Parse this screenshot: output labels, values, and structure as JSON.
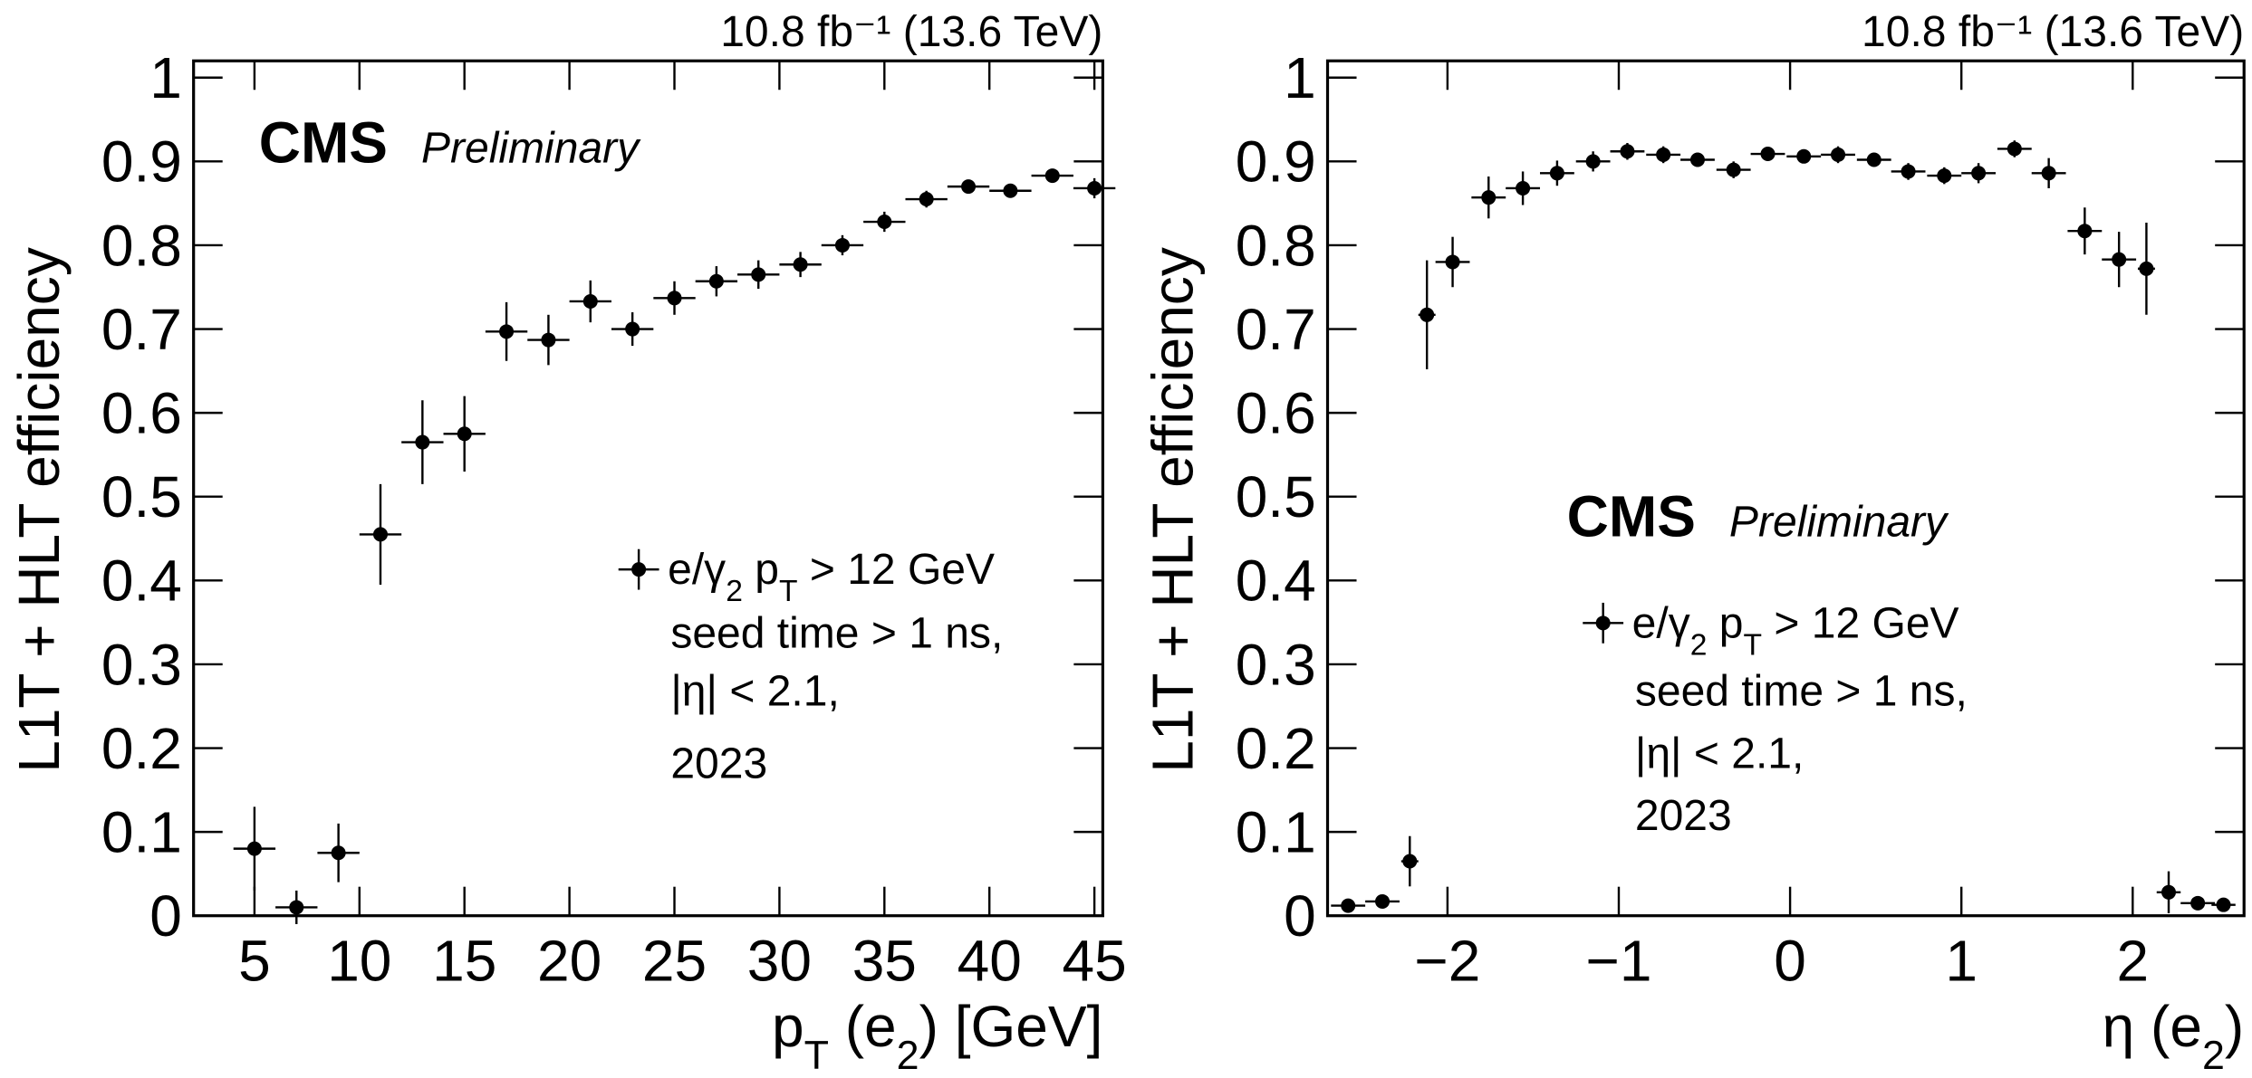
{
  "chart_data": [
    {
      "type": "scatter",
      "lumi": "10.8 fb⁻¹ (13.6 TeV)",
      "experiment": "CMS",
      "status": "Preliminary",
      "ylabel": "L1T + HLT efficiency",
      "xlabel": [
        {
          "text": "p"
        },
        {
          "text": "T",
          "sub": true
        },
        {
          "text": " (e"
        },
        {
          "text": "2",
          "sub": true
        },
        {
          "text": ") [GeV]"
        }
      ],
      "legend": [
        {
          "text": "e/γ"
        },
        {
          "text": "2",
          "sub": true
        },
        {
          "text": " p"
        },
        {
          "text": "T",
          "sub": true
        },
        {
          "text": " > 12 GeV"
        }
      ],
      "legend_notes": [
        "seed time > 1 ns,",
        "|η| < 2.1,",
        "2023"
      ],
      "color": "#000000",
      "x": [
        5,
        7,
        9,
        11,
        13,
        15,
        17,
        19,
        21,
        23,
        25,
        27,
        29,
        31,
        33,
        35,
        37,
        39,
        41,
        43,
        45
      ],
      "xerr": [
        1,
        1,
        1,
        1,
        1,
        1,
        1,
        1,
        1,
        1,
        1,
        1,
        1,
        1,
        1,
        1,
        1,
        1,
        1,
        1,
        1
      ],
      "values": [
        0.08,
        0.01,
        0.075,
        0.455,
        0.565,
        0.575,
        0.697,
        0.687,
        0.733,
        0.7,
        0.737,
        0.757,
        0.765,
        0.777,
        0.8,
        0.828,
        0.855,
        0.87,
        0.865,
        0.883,
        0.868
      ],
      "yerr": [
        0.05,
        0.02,
        0.035,
        0.06,
        0.05,
        0.045,
        0.035,
        0.03,
        0.025,
        0.02,
        0.02,
        0.018,
        0.017,
        0.015,
        0.012,
        0.012,
        0.01,
        0.008,
        0.008,
        0.008,
        0.012
      ],
      "xlim": [
        2.1,
        45.4
      ],
      "ylim": [
        0,
        1.02
      ],
      "xticks": [
        5,
        10,
        15,
        20,
        25,
        30,
        35,
        40,
        45
      ],
      "yticks": [
        0,
        0.1,
        0.2,
        0.3,
        0.4,
        0.5,
        0.6,
        0.7,
        0.8,
        0.9,
        1
      ]
    },
    {
      "type": "scatter",
      "lumi": "10.8 fb⁻¹ (13.6 TeV)",
      "experiment": "CMS",
      "status": "Preliminary",
      "ylabel": "L1T + HLT efficiency",
      "xlabel": [
        {
          "text": "η (e"
        },
        {
          "text": "2",
          "sub": true
        },
        {
          "text": ")"
        }
      ],
      "legend": [
        {
          "text": "e/γ"
        },
        {
          "text": "2",
          "sub": true
        },
        {
          "text": " p"
        },
        {
          "text": "T",
          "sub": true
        },
        {
          "text": " > 12 GeV"
        }
      ],
      "legend_notes": [
        "seed time > 1 ns,",
        "|η| < 2.1,",
        "2023"
      ],
      "color": "#000000",
      "x": [
        -2.58,
        -2.38,
        -2.22,
        -2.12,
        -1.97,
        -1.76,
        -1.56,
        -1.36,
        -1.15,
        -0.95,
        -0.74,
        -0.54,
        -0.33,
        -0.13,
        0.08,
        0.28,
        0.49,
        0.69,
        0.9,
        1.1,
        1.31,
        1.51,
        1.72,
        1.92,
        2.08,
        2.21,
        2.38,
        2.53
      ],
      "xerr": [
        0.1,
        0.1,
        0.05,
        0.05,
        0.1,
        0.1,
        0.1,
        0.1,
        0.1,
        0.1,
        0.1,
        0.1,
        0.1,
        0.1,
        0.1,
        0.1,
        0.1,
        0.1,
        0.1,
        0.1,
        0.1,
        0.1,
        0.1,
        0.1,
        0.05,
        0.07,
        0.1,
        0.07
      ],
      "values": [
        0.012,
        0.017,
        0.065,
        0.717,
        0.78,
        0.857,
        0.868,
        0.886,
        0.9,
        0.912,
        0.908,
        0.902,
        0.89,
        0.909,
        0.906,
        0.908,
        0.902,
        0.888,
        0.883,
        0.886,
        0.915,
        0.886,
        0.817,
        0.783,
        0.772,
        0.028,
        0.015,
        0.013
      ],
      "yerr": [
        0.005,
        0.006,
        0.03,
        0.065,
        0.03,
        0.025,
        0.02,
        0.015,
        0.012,
        0.01,
        0.01,
        0.008,
        0.01,
        0.007,
        0.007,
        0.01,
        0.008,
        0.01,
        0.01,
        0.012,
        0.01,
        0.018,
        0.028,
        0.033,
        0.055,
        0.025,
        0.008,
        0.007
      ],
      "xlim": [
        -2.7,
        2.65
      ],
      "ylim": [
        0,
        1.02
      ],
      "xticks": [
        {
          "value": -2,
          "label": "−2"
        },
        {
          "value": -1,
          "label": "−1"
        },
        0,
        1,
        2
      ],
      "yticks": [
        0,
        0.1,
        0.2,
        0.3,
        0.4,
        0.5,
        0.6,
        0.7,
        0.8,
        0.9,
        1
      ]
    }
  ]
}
